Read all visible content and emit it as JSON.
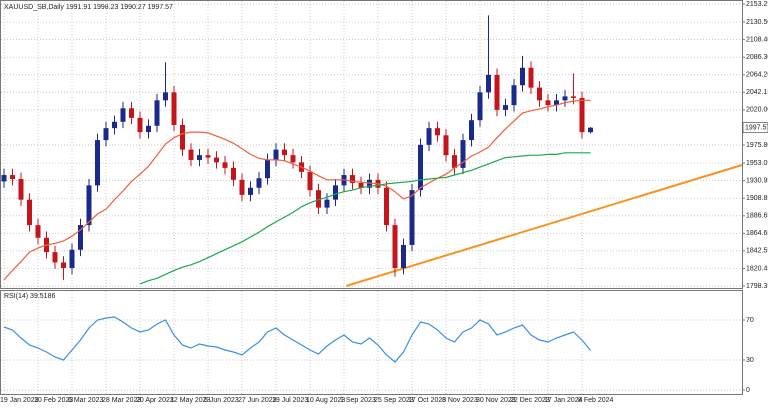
{
  "chart_data": [
    {
      "type": "candlestick",
      "title": "XAUUSD_SB,Daily 1991.91 1998.23 1990.27 1997.57",
      "categories": [
        "19 Jan 2023",
        null,
        null,
        null,
        "10 Feb 2023",
        null,
        null,
        null,
        "6 Mar 2023",
        null,
        null,
        null,
        "28 Mar 2023",
        null,
        null,
        null,
        "20 Apr 2023",
        null,
        null,
        null,
        "12 May 2023",
        null,
        null,
        null,
        "5 Jun 2023",
        null,
        null,
        null,
        "27 Jun 2023",
        null,
        null,
        null,
        "19 Jul 2023",
        null,
        null,
        null,
        "10 Aug 2023",
        null,
        null,
        null,
        "1 Sep 2023",
        null,
        null,
        null,
        "25 Sep 2023",
        null,
        null,
        null,
        "17 Oct 2023",
        null,
        null,
        null,
        "8 Nov 2023",
        null,
        null,
        null,
        "30 Nov 2023",
        null,
        null,
        null,
        "22 Dec 2023",
        null,
        null,
        null,
        "17 Jan 2024",
        null,
        null,
        null,
        "8 Feb 2024",
        null
      ],
      "open": [
        1930,
        1938,
        1933,
        1907,
        1875,
        1859,
        1841,
        1828,
        1821,
        1844,
        1875,
        1925,
        1982,
        1997,
        2005,
        2022,
        2010,
        1992,
        2000,
        2032,
        2042,
        2001,
        1970,
        1957,
        1963,
        1960,
        1954,
        1947,
        1932,
        1913,
        1922,
        1934,
        1957,
        1970,
        1963,
        1954,
        1942,
        1919,
        1897,
        1907,
        1925,
        1938,
        1928,
        1922,
        1932,
        1922,
        1875,
        1821,
        1850,
        1919,
        1976,
        1997,
        1988,
        1963,
        1947,
        1982,
        2007,
        2042,
        2064,
        2020,
        2026,
        2051,
        2073,
        2048,
        2032,
        2026,
        2032,
        2037,
        2035,
        1991.91
      ],
      "high": [
        1946,
        1946,
        1941,
        1915,
        1883,
        1867,
        1849,
        1836,
        1852,
        1883,
        1933,
        1990,
        2005,
        2013,
        2030,
        2030,
        2018,
        2008,
        2040,
        2080,
        2050,
        2009,
        1978,
        1971,
        1971,
        1968,
        1962,
        1955,
        1940,
        1930,
        1942,
        1965,
        1978,
        1978,
        1971,
        1962,
        1950,
        1927,
        1915,
        1933,
        1946,
        1946,
        1936,
        1940,
        1940,
        1930,
        1883,
        1858,
        1927,
        1984,
        2005,
        2005,
        1996,
        1971,
        1990,
        2015,
        2050,
        2139,
        2072,
        2034,
        2059,
        2088,
        2081,
        2056,
        2040,
        2040,
        2045,
        2066,
        2043,
        1998.23
      ],
      "low": [
        1922,
        1925,
        1899,
        1867,
        1851,
        1833,
        1820,
        1806,
        1813,
        1836,
        1867,
        1917,
        1974,
        1989,
        1997,
        2002,
        1984,
        1984,
        1992,
        2024,
        1993,
        1962,
        1949,
        1949,
        1952,
        1946,
        1939,
        1924,
        1905,
        1905,
        1914,
        1926,
        1949,
        1955,
        1946,
        1934,
        1911,
        1889,
        1889,
        1899,
        1917,
        1920,
        1914,
        1914,
        1914,
        1867,
        1810,
        1813,
        1842,
        1911,
        1968,
        1980,
        1955,
        1939,
        1939,
        1974,
        1999,
        2034,
        2012,
        2012,
        2018,
        2043,
        2040,
        2024,
        2018,
        2018,
        2024,
        2027,
        1984,
        1990.27
      ],
      "close": [
        1938,
        1933,
        1907,
        1875,
        1859,
        1841,
        1828,
        1821,
        1844,
        1875,
        1925,
        1982,
        1997,
        2005,
        2022,
        2010,
        1992,
        2000,
        2032,
        2042,
        2001,
        1970,
        1957,
        1963,
        1960,
        1954,
        1947,
        1932,
        1913,
        1922,
        1934,
        1957,
        1970,
        1963,
        1954,
        1942,
        1919,
        1897,
        1907,
        1925,
        1938,
        1928,
        1922,
        1932,
        1922,
        1875,
        1821,
        1850,
        1919,
        1976,
        1997,
        1988,
        1963,
        1947,
        1982,
        2007,
        2042,
        2064,
        2020,
        2026,
        2051,
        2073,
        2048,
        2032,
        2026,
        2032,
        2037,
        2035,
        1992,
        1997.57
      ],
      "up_color": "#1b2a8a",
      "down_color": "#c4141c",
      "series": [
        {
          "color": "#f0603a",
          "values": [
            1806,
            1818,
            1829,
            1841,
            1846,
            1850,
            1852,
            1855,
            1861,
            1869,
            1879,
            1889,
            1895,
            1907,
            1918,
            1930,
            1939,
            1949,
            1963,
            1977,
            1985,
            1990,
            1992,
            1992,
            1991,
            1987,
            1983,
            1978,
            1971,
            1964,
            1959,
            1957,
            1957,
            1956,
            1952,
            1948,
            1943,
            1937,
            1932,
            1932,
            1932,
            1930,
            1929,
            1928,
            1927,
            1924,
            1917,
            1908,
            1912,
            1922,
            1928,
            1934,
            1939,
            1947,
            1954,
            1962,
            1967,
            1973,
            1985,
            1996,
            2006,
            2016,
            2019,
            2021,
            2024,
            2026,
            2029,
            2031,
            2032,
            2032
          ]
        },
        {
          "color": "#1fa84a",
          "values": [
            null,
            null,
            null,
            null,
            null,
            null,
            null,
            null,
            null,
            null,
            null,
            null,
            null,
            null,
            null,
            null,
            1801,
            1805,
            1808,
            1813,
            1818,
            1822,
            1825,
            1829,
            1834,
            1839,
            1844,
            1849,
            1854,
            1860,
            1866,
            1873,
            1879,
            1885,
            1891,
            1898,
            1903,
            1907,
            1910,
            1914,
            1917,
            1919,
            1922,
            1924,
            1925,
            1927,
            1928,
            1929,
            1930,
            1932,
            1933,
            1934,
            1935,
            1938,
            1941,
            1944,
            1948,
            1952,
            1956,
            1960,
            1961,
            1962,
            1963,
            1963,
            1964,
            1964,
            1966,
            1966,
            1966,
            1966
          ]
        }
      ],
      "last_price": 1997.57,
      "ylim": [
        1798.35,
        2153.25
      ],
      "yticks": [
        2153.25,
        {
          "value": 2130.5,
          "label": "2130.50"
        },
        {
          "value": 2108.4,
          "label": "2108.40"
        },
        {
          "value": 2086.3,
          "label": "2086.30"
        },
        {
          "value": 2064.2,
          "label": "2064.20"
        },
        2042.15,
        {
          "value": 2020,
          "label": "2020.00"
        },
        {
          "value": 1975.8,
          "label": "1975.80"
        },
        1953.05,
        1930.95,
        1908.85,
        1886.65,
        1864.65,
        1842.55,
        1820.45,
        1798.35
      ],
      "grid": true
    },
    {
      "type": "line",
      "title": "RSI(14) 39.5186",
      "values": [
        63,
        60,
        52,
        45,
        42,
        38,
        33,
        30,
        40,
        50,
        62,
        70,
        72,
        73,
        68,
        62,
        58,
        60,
        66,
        70,
        55,
        45,
        42,
        46,
        44,
        43,
        40,
        38,
        35,
        42,
        48,
        58,
        62,
        55,
        50,
        45,
        40,
        36,
        44,
        50,
        55,
        48,
        46,
        52,
        45,
        35,
        28,
        38,
        55,
        68,
        66,
        60,
        52,
        48,
        58,
        62,
        70,
        66,
        55,
        58,
        62,
        65,
        55,
        50,
        48,
        52,
        55,
        58,
        50,
        39.5186
      ],
      "color": "#3b8fe3",
      "ylim": [
        0,
        100
      ],
      "yticks": [
        70,
        30,
        0
      ],
      "grid": true
    }
  ]
}
